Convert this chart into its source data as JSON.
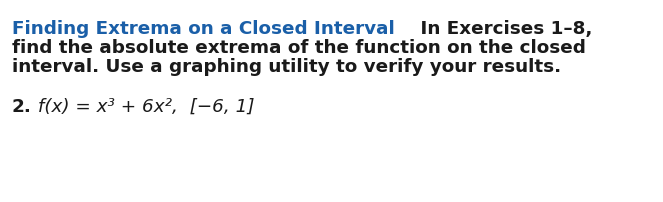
{
  "background_color": "#ffffff",
  "blue_color": "#1a5fa8",
  "black_color": "#1a1a1a",
  "line1_blue": "Finding Extrema on a Closed Interval",
  "line1_black": "    In Exercises 1–8,",
  "line2": "find the absolute extrema of the function on the closed",
  "line3": "interval. Use a graphing utility to verify your results.",
  "ex_num": "2.",
  "ex_math": " f(x) = x³ + 6x²,  [−6, 1]",
  "bold_fontsize": 13.2,
  "math_fontsize": 13.2,
  "fig_width": 6.63,
  "fig_height": 2.03,
  "dpi": 100
}
